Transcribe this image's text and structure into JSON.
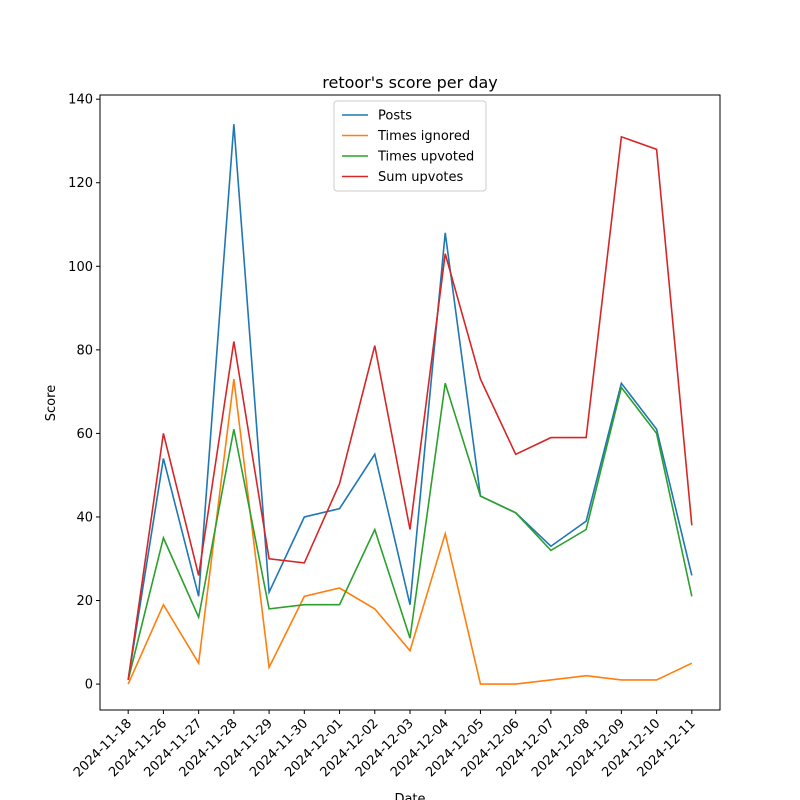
{
  "chart_data": {
    "type": "line",
    "title": "retoor's score per day",
    "xlabel": "Date",
    "ylabel": "Score",
    "categories": [
      "2024-11-18",
      "2024-11-26",
      "2024-11-27",
      "2024-11-28",
      "2024-11-29",
      "2024-11-30",
      "2024-12-01",
      "2024-12-02",
      "2024-12-03",
      "2024-12-04",
      "2024-12-05",
      "2024-12-06",
      "2024-12-07",
      "2024-12-08",
      "2024-12-09",
      "2024-12-10",
      "2024-12-11"
    ],
    "series": [
      {
        "name": "Posts",
        "color": "#1f77b4",
        "values": [
          1,
          54,
          21,
          134,
          22,
          40,
          42,
          55,
          19,
          108,
          45,
          41,
          33,
          39,
          72,
          61,
          26
        ]
      },
      {
        "name": "Times ignored",
        "color": "#ff7f0e",
        "values": [
          0,
          19,
          5,
          73,
          4,
          21,
          23,
          18,
          8,
          36,
          0,
          0,
          1,
          2,
          1,
          1,
          5
        ]
      },
      {
        "name": "Times upvoted",
        "color": "#2ca02c",
        "values": [
          1,
          35,
          16,
          61,
          18,
          19,
          19,
          37,
          11,
          72,
          45,
          41,
          32,
          37,
          71,
          60,
          21
        ]
      },
      {
        "name": "Sum upvotes",
        "color": "#d62728",
        "values": [
          1,
          60,
          26,
          82,
          30,
          29,
          48,
          81,
          37,
          103,
          73,
          55,
          59,
          59,
          131,
          128,
          38
        ]
      }
    ],
    "ylim": [
      -6.2,
      141
    ],
    "yticks": [
      0,
      20,
      40,
      60,
      80,
      100,
      120,
      140
    ],
    "legend": "upper center"
  }
}
